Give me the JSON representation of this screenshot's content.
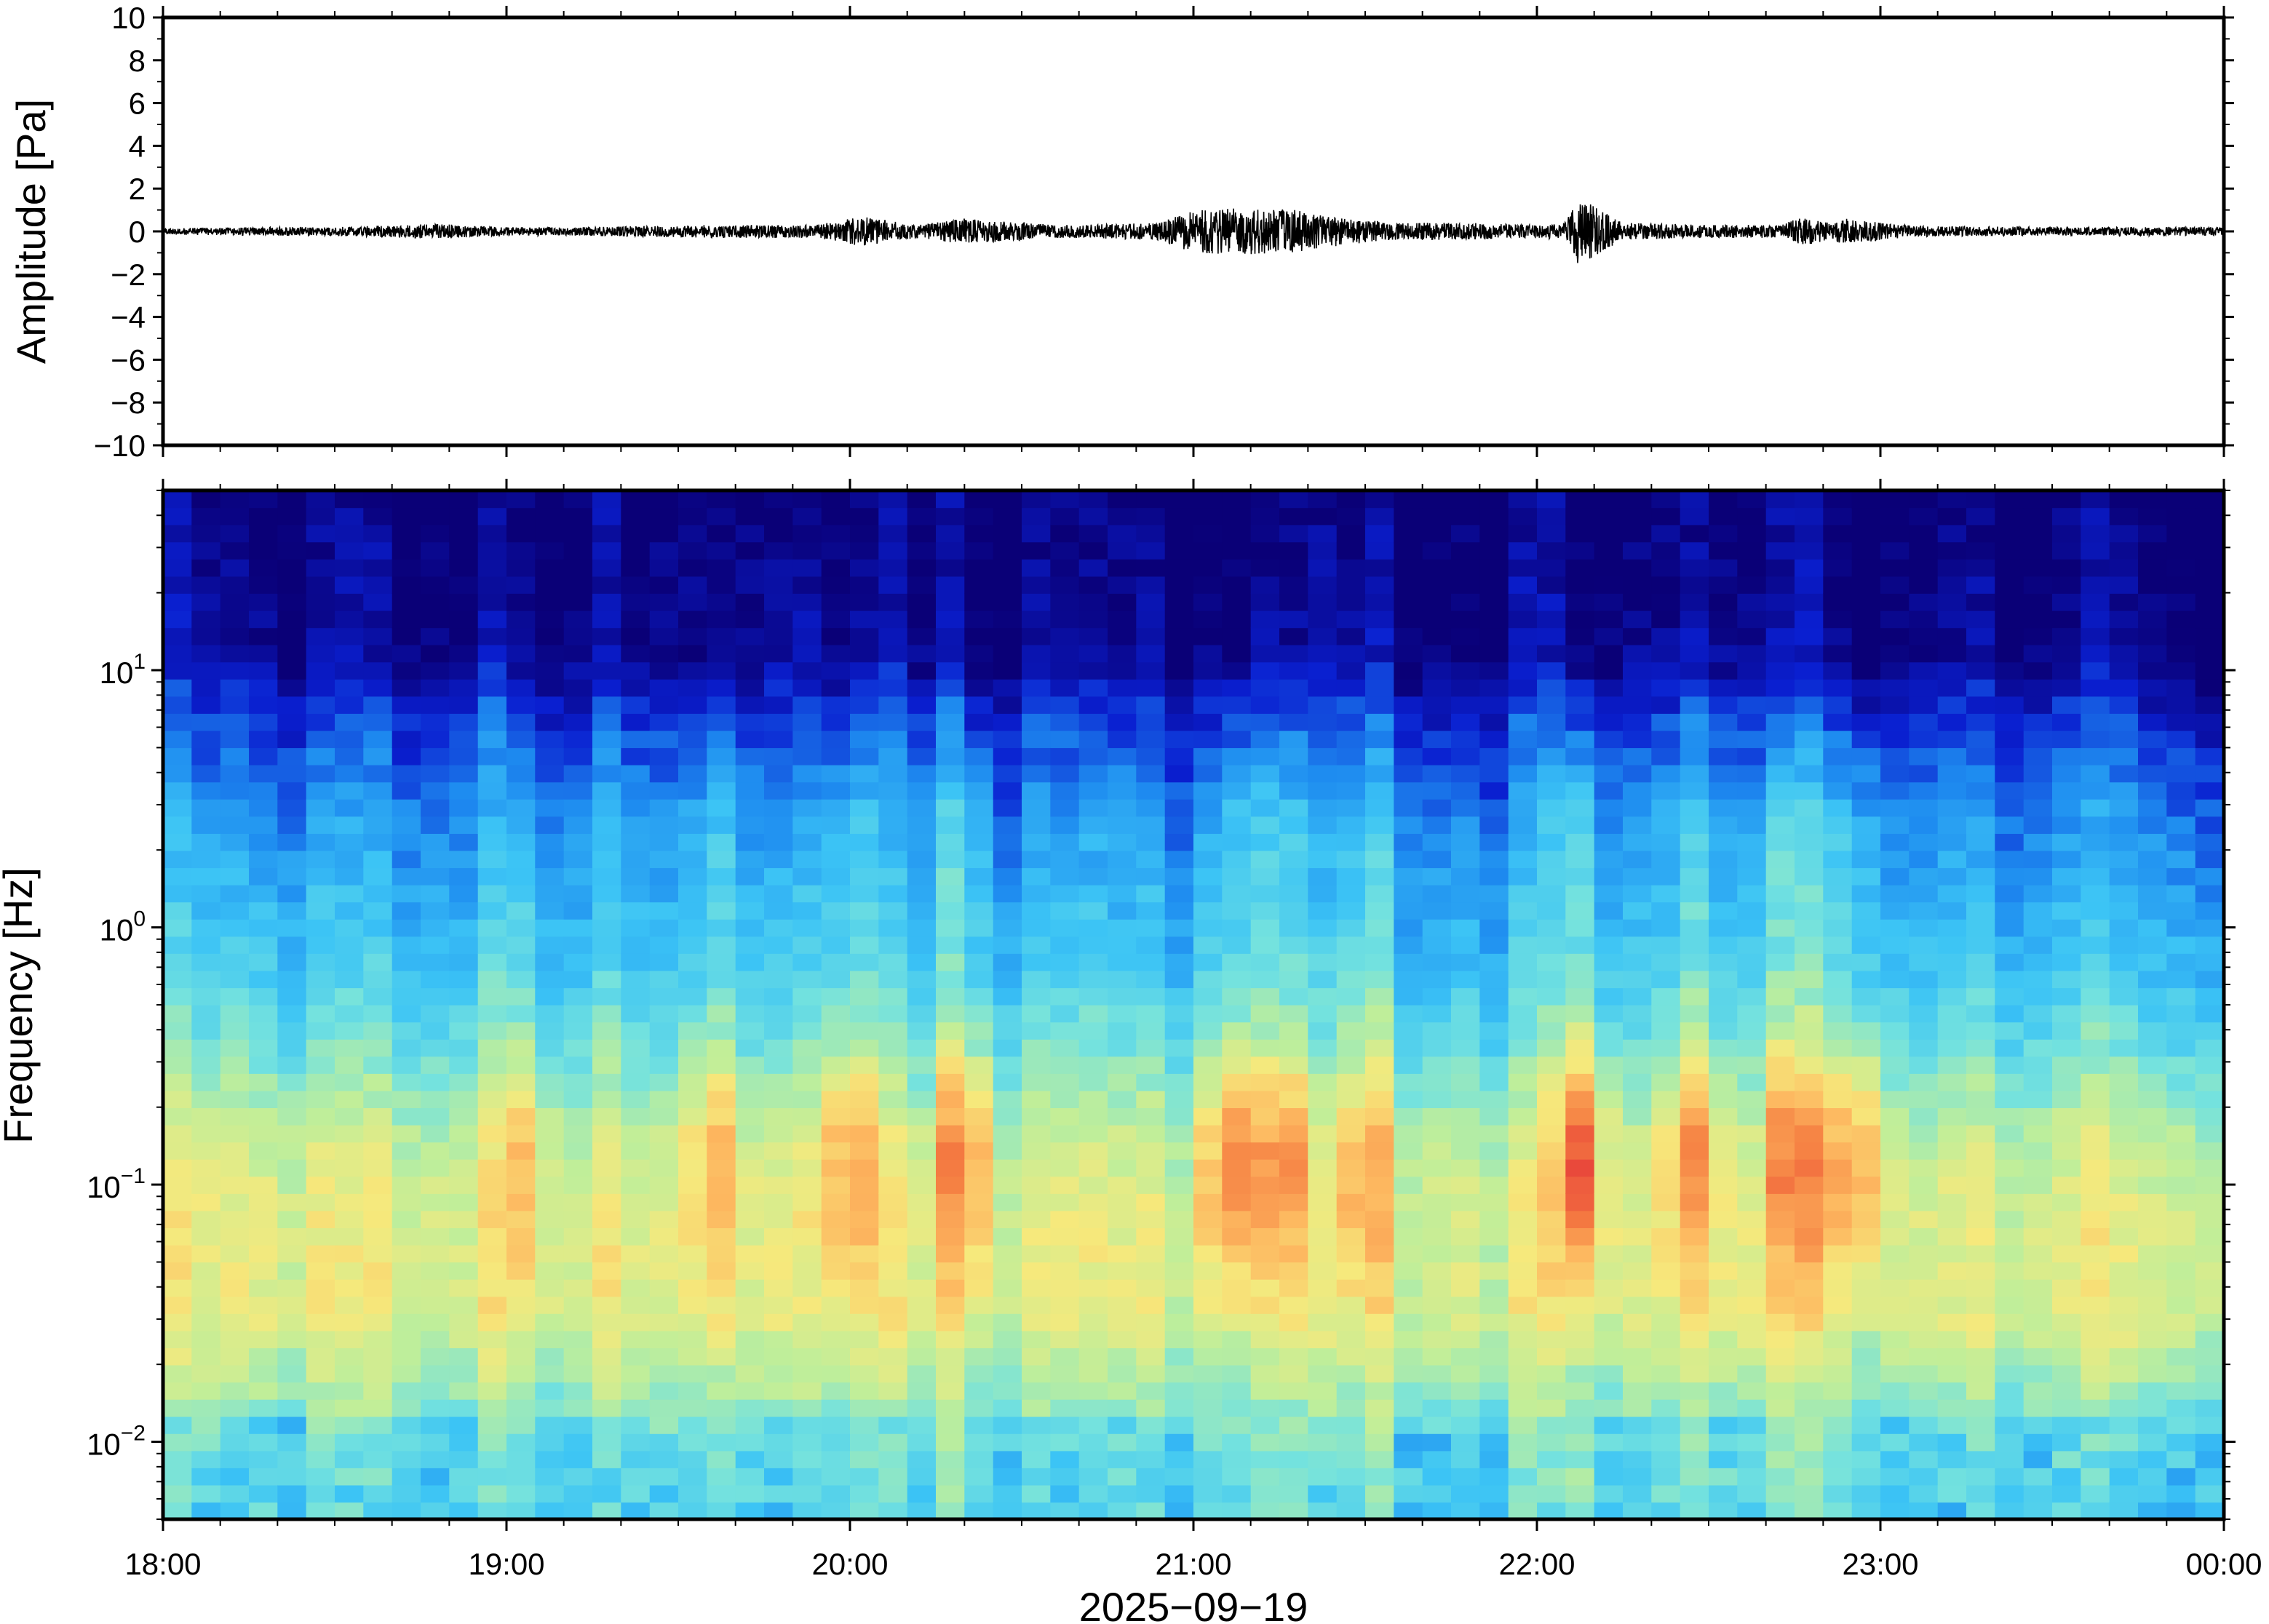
{
  "chart_data": [
    {
      "type": "line",
      "panel": "waveform",
      "ylabel": "Amplitude [Pa]",
      "ylim": [
        -10,
        10
      ],
      "yticks": [
        10,
        8,
        6,
        4,
        2,
        0,
        -2,
        -4,
        -6,
        -8,
        -10
      ],
      "ytick_labels": [
        "10",
        "8",
        "6",
        "4",
        "2",
        "0",
        "−2",
        "−4",
        "−6",
        "−8",
        "−10"
      ],
      "xlim_hours": [
        18,
        24
      ],
      "color": "#000000",
      "series": [
        {
          "envelope_time_hours": [
            18.0,
            18.3,
            18.5,
            18.8,
            19.0,
            19.2,
            19.6,
            19.9,
            20.03,
            20.2,
            20.33,
            20.6,
            20.9,
            21.0,
            21.15,
            21.3,
            21.45,
            21.6,
            21.8,
            22.0,
            22.08,
            22.12,
            22.25,
            22.5,
            22.7,
            22.78,
            22.85,
            22.9,
            23.1,
            23.5,
            24.0
          ],
          "envelope_amplitude_pa": [
            0.15,
            0.2,
            0.2,
            0.35,
            0.2,
            0.2,
            0.3,
            0.3,
            0.7,
            0.3,
            0.6,
            0.3,
            0.4,
            1.0,
            1.1,
            1.0,
            0.6,
            0.4,
            0.4,
            0.3,
            0.4,
            1.6,
            0.4,
            0.3,
            0.3,
            0.7,
            0.4,
            0.6,
            0.25,
            0.2,
            0.2
          ]
        }
      ]
    },
    {
      "type": "heatmap",
      "panel": "spectrogram",
      "ylabel": "Frequency [Hz]",
      "yscale": "log",
      "ylim": [
        0.005,
        50
      ],
      "yticks": [
        0.01,
        0.1,
        1,
        10
      ],
      "ytick_labels": [
        {
          "base": "10",
          "exp": "−2"
        },
        {
          "base": "10",
          "exp": "−1"
        },
        {
          "base": "10",
          "exp": "0"
        },
        {
          "base": "10",
          "exp": "1"
        }
      ],
      "xlabel": "2025−09−19",
      "xlim_hours": [
        18,
        24
      ],
      "xticks_hours": [
        18,
        19,
        20,
        21,
        22,
        23,
        24
      ],
      "xtick_labels": [
        "18:00",
        "19:00",
        "20:00",
        "21:00",
        "22:00",
        "23:00",
        "00:00"
      ],
      "colormap": [
        "#0a0077",
        "#0a1fd0",
        "#1e8cf0",
        "#3cc4f5",
        "#74e2de",
        "#bfee9a",
        "#f6e97c",
        "#fdb860",
        "#f57e42",
        "#e8443a"
      ],
      "intensity_scale": "relative 0-1",
      "active_time_hours": [
        {
          "t": 19.05,
          "level": 0.45
        },
        {
          "t": 19.6,
          "level": 0.5
        },
        {
          "t": 20.0,
          "level": 0.7
        },
        {
          "t": 20.33,
          "level": 0.75
        },
        {
          "t": 21.1,
          "level": 0.85
        },
        {
          "t": 21.25,
          "level": 0.8
        },
        {
          "t": 21.5,
          "level": 0.55
        },
        {
          "t": 22.12,
          "level": 0.95
        },
        {
          "t": 22.45,
          "level": 0.6
        },
        {
          "t": 22.75,
          "level": 0.85
        },
        {
          "t": 22.92,
          "level": 0.8
        }
      ]
    }
  ]
}
